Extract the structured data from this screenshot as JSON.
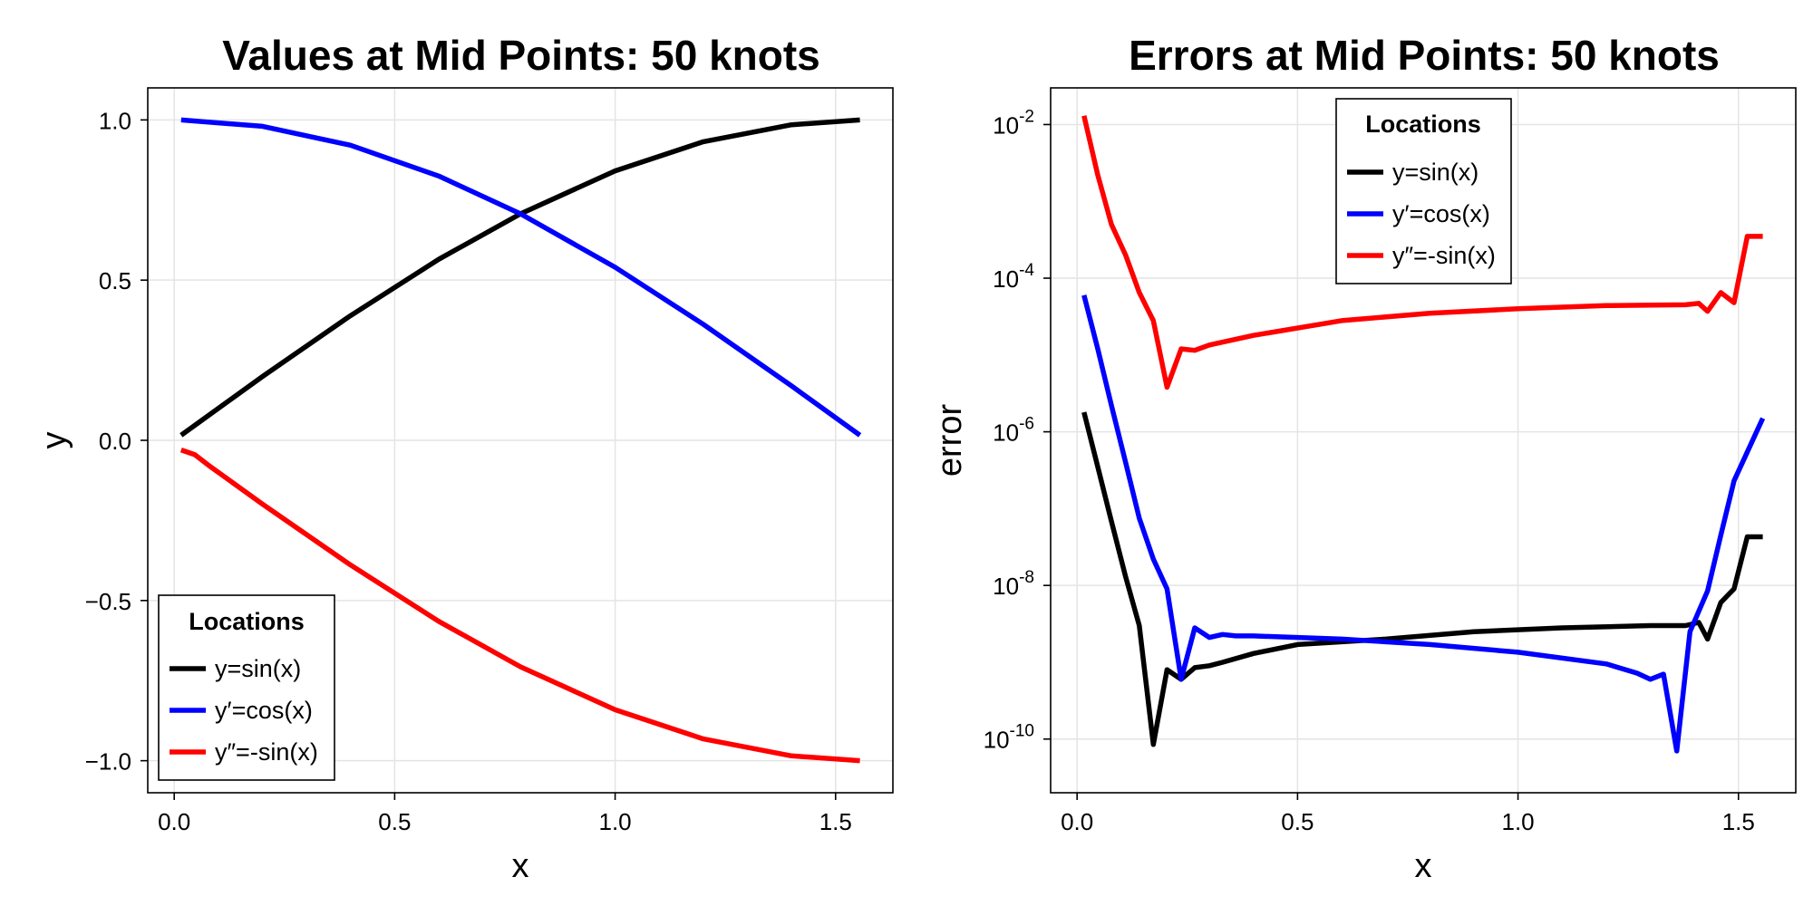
{
  "chart_data": [
    {
      "type": "line",
      "title": "Values at Mid Points: 50 knots",
      "xlabel": "x",
      "ylabel": "y",
      "xlim": [
        -0.06,
        1.63
      ],
      "ylim": [
        -1.1,
        1.1
      ],
      "yscale": "linear",
      "xticks": [
        0.0,
        0.5,
        1.0,
        1.5
      ],
      "xtick_labels": [
        "0.0",
        "0.5",
        "1.0",
        "1.5"
      ],
      "yticks": [
        1.0,
        0.5,
        0.0,
        -0.5,
        -1.0
      ],
      "ytick_labels": [
        "1.0",
        "0.5",
        "0.0",
        "−0.5",
        "−1.0"
      ],
      "grid": true,
      "legend": {
        "title": "Locations",
        "placement": "bottom-left"
      },
      "series": [
        {
          "name": "y=sin(x)",
          "color": "#000000",
          "x": [
            0.0157,
            0.2,
            0.4,
            0.6,
            0.7854,
            1.0,
            1.2,
            1.4,
            1.5551
          ],
          "y": [
            0.0157,
            0.199,
            0.389,
            0.565,
            0.707,
            0.841,
            0.932,
            0.985,
            0.9999
          ]
        },
        {
          "name": "y′=cos(x)",
          "color": "#0000ff",
          "x": [
            0.0157,
            0.2,
            0.4,
            0.6,
            0.7854,
            1.0,
            1.2,
            1.4,
            1.5551
          ],
          "y": [
            0.9999,
            0.98,
            0.921,
            0.825,
            0.707,
            0.54,
            0.362,
            0.17,
            0.0157
          ]
        },
        {
          "name": "y″=-sin(x)",
          "color": "#ff0000",
          "x": [
            0.0157,
            0.047,
            0.078,
            0.2,
            0.4,
            0.6,
            0.7854,
            1.0,
            1.2,
            1.4,
            1.5551
          ],
          "y": [
            -0.03,
            -0.045,
            -0.078,
            -0.199,
            -0.389,
            -0.565,
            -0.707,
            -0.841,
            -0.932,
            -0.985,
            -0.9999
          ]
        }
      ]
    },
    {
      "type": "line",
      "title": "Errors at Mid Points: 50 knots",
      "xlabel": "x",
      "ylabel": "error",
      "xlim": [
        -0.06,
        1.63
      ],
      "ylim": [
        2e-11,
        0.03
      ],
      "yscale": "log",
      "xticks": [
        0.0,
        0.5,
        1.0,
        1.5
      ],
      "xtick_labels": [
        "0.0",
        "0.5",
        "1.0",
        "1.5"
      ],
      "yticks": [
        0.01,
        0.0001,
        1e-06,
        1e-08,
        1e-10
      ],
      "ytick_labels": [
        {
          "base": "10",
          "exp": "-2"
        },
        {
          "base": "10",
          "exp": "-4"
        },
        {
          "base": "10",
          "exp": "-6"
        },
        {
          "base": "10",
          "exp": "-8"
        },
        {
          "base": "10",
          "exp": "-10"
        }
      ],
      "grid": true,
      "legend": {
        "title": "Locations",
        "placement": "top-center"
      },
      "series": [
        {
          "name": "y=sin(x)",
          "color": "#000000",
          "x": [
            0.0157,
            0.047,
            0.078,
            0.11,
            0.141,
            0.173,
            0.204,
            0.236,
            0.267,
            0.3,
            0.33,
            0.4,
            0.5,
            0.7,
            0.9,
            1.1,
            1.3,
            1.38,
            1.41,
            1.43,
            1.46,
            1.49,
            1.52,
            1.5551
          ],
          "y": [
            1.8e-06,
            3.5e-07,
            6.8e-08,
            1.3e-08,
            3e-09,
            8.5e-11,
            8e-10,
            6e-10,
            8.5e-10,
            9e-10,
            1e-09,
            1.3e-09,
            1.7e-09,
            2e-09,
            2.5e-09,
            2.8e-09,
            3e-09,
            3e-09,
            3.3e-09,
            2e-09,
            6e-09,
            9e-09,
            4.3e-08,
            4.3e-08
          ]
        },
        {
          "name": "y′=cos(x)",
          "color": "#0000ff",
          "x": [
            0.0157,
            0.047,
            0.078,
            0.11,
            0.141,
            0.173,
            0.204,
            0.236,
            0.267,
            0.3,
            0.33,
            0.36,
            0.4,
            0.6,
            0.8,
            1.0,
            1.2,
            1.27,
            1.3,
            1.33,
            1.36,
            1.39,
            1.43,
            1.46,
            1.49,
            1.5551
          ],
          "y": [
            6e-05,
            1.2e-05,
            2.2e-06,
            4e-07,
            7.5e-08,
            2.2e-08,
            9e-09,
            6e-10,
            2.8e-09,
            2.1e-09,
            2.3e-09,
            2.2e-09,
            2.2e-09,
            2e-09,
            1.7e-09,
            1.35e-09,
            9.5e-10,
            7.2e-10,
            6e-10,
            7e-10,
            7e-11,
            2.5e-09,
            8.5e-09,
            4.5e-08,
            2.3e-07,
            1.5e-06
          ]
        },
        {
          "name": "y″=-sin(x)",
          "color": "#ff0000",
          "x": [
            0.0157,
            0.047,
            0.078,
            0.11,
            0.141,
            0.173,
            0.204,
            0.236,
            0.267,
            0.3,
            0.4,
            0.6,
            0.8,
            1.0,
            1.2,
            1.38,
            1.41,
            1.43,
            1.46,
            1.49,
            1.52,
            1.5551
          ],
          "y": [
            0.013,
            0.0022,
            0.0005,
            0.0002,
            6.5e-05,
            2.8e-05,
            3.8e-06,
            1.2e-05,
            1.15e-05,
            1.35e-05,
            1.8e-05,
            2.8e-05,
            3.5e-05,
            4e-05,
            4.4e-05,
            4.5e-05,
            4.7e-05,
            3.7e-05,
            6.5e-05,
            4.8e-05,
            0.00035,
            0.00035
          ]
        }
      ]
    }
  ]
}
